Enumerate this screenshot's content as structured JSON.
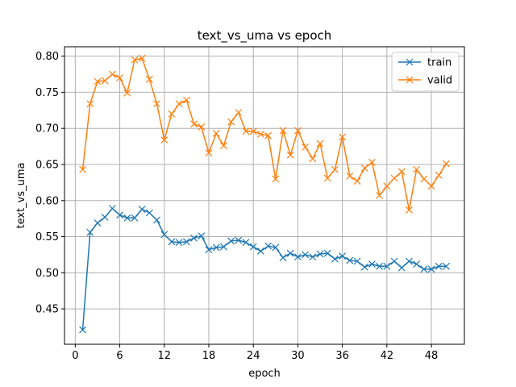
{
  "chart_data": {
    "type": "line",
    "title": "text_vs_uma vs epoch",
    "xlabel": "epoch",
    "ylabel": "text_vs_uma",
    "xlim": [
      -1.45,
      52.45
    ],
    "ylim": [
      0.401,
      0.813
    ],
    "xticks": [
      0,
      6,
      12,
      18,
      24,
      30,
      36,
      42,
      48
    ],
    "yticks": [
      0.45,
      0.5,
      0.55,
      0.6,
      0.65,
      0.7,
      0.75,
      0.8
    ],
    "ytick_labels": [
      "0.45",
      "0.50",
      "0.55",
      "0.60",
      "0.65",
      "0.70",
      "0.75",
      "0.80"
    ],
    "grid": true,
    "legend_position": "top-right",
    "marker": "x",
    "x": [
      1,
      2,
      3,
      4,
      5,
      6,
      7,
      8,
      9,
      10,
      11,
      12,
      13,
      14,
      15,
      16,
      17,
      18,
      19,
      20,
      21,
      22,
      23,
      24,
      25,
      26,
      27,
      28,
      29,
      30,
      31,
      32,
      33,
      34,
      35,
      36,
      37,
      38,
      39,
      40,
      41,
      42,
      43,
      44,
      45,
      46,
      47,
      48,
      49,
      50
    ],
    "series": [
      {
        "name": "train",
        "color": "#1f77b4",
        "values": [
          0.421,
          0.556,
          0.569,
          0.577,
          0.589,
          0.58,
          0.576,
          0.576,
          0.588,
          0.583,
          0.573,
          0.553,
          0.543,
          0.542,
          0.543,
          0.548,
          0.551,
          0.532,
          0.535,
          0.536,
          0.544,
          0.545,
          0.542,
          0.536,
          0.53,
          0.537,
          0.535,
          0.521,
          0.527,
          0.522,
          0.525,
          0.522,
          0.526,
          0.527,
          0.519,
          0.523,
          0.517,
          0.516,
          0.508,
          0.512,
          0.509,
          0.509,
          0.516,
          0.507,
          0.516,
          0.512,
          0.505,
          0.505,
          0.509,
          0.509
        ]
      },
      {
        "name": "valid",
        "color": "#ff7f0e",
        "values": [
          0.643,
          0.734,
          0.765,
          0.766,
          0.775,
          0.77,
          0.749,
          0.795,
          0.797,
          0.768,
          0.734,
          0.684,
          0.72,
          0.734,
          0.739,
          0.706,
          0.702,
          0.666,
          0.693,
          0.676,
          0.709,
          0.722,
          0.696,
          0.696,
          0.692,
          0.69,
          0.63,
          0.697,
          0.663,
          0.697,
          0.674,
          0.658,
          0.679,
          0.631,
          0.643,
          0.688,
          0.634,
          0.627,
          0.645,
          0.653,
          0.607,
          0.62,
          0.631,
          0.64,
          0.587,
          0.643,
          0.63,
          0.62,
          0.635,
          0.651
        ]
      }
    ]
  }
}
